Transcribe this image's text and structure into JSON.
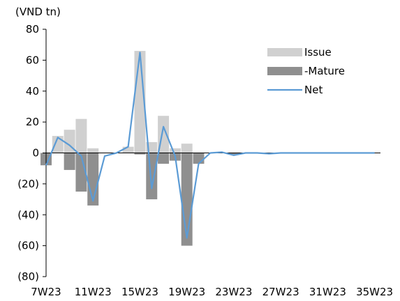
{
  "chart_data": {
    "type": "bar",
    "unit_label": "(VND tn)",
    "x_ticks": [
      "7W23",
      "11W23",
      "15W23",
      "19W23",
      "23W23",
      "27W23",
      "31W23",
      "35W23"
    ],
    "y_ticks": [
      "80",
      "60",
      "40",
      "20",
      "0",
      "(20)",
      "(40)",
      "(60)",
      "(80)"
    ],
    "ylim": [
      -80,
      80
    ],
    "weeks": 29,
    "first_week": 7,
    "legend": {
      "placement": "top-right",
      "labels": [
        "Issue",
        "-Mature",
        "Net"
      ]
    },
    "colors": {
      "issue": "#d0d0d0",
      "mature": "#8f8f8f",
      "net": "#5b9bd5",
      "axis": "#000000"
    },
    "series": [
      {
        "name": "Issue",
        "kind": "bar",
        "values": [
          0,
          11,
          15,
          22,
          3,
          0,
          0,
          4,
          66,
          7,
          24,
          3,
          6,
          0,
          0,
          0,
          0,
          0,
          0,
          0,
          0,
          0,
          0,
          0,
          0,
          0,
          0,
          0,
          0
        ]
      },
      {
        "name": "-Mature",
        "kind": "bar",
        "values": [
          -8,
          0,
          -11,
          -25,
          -34,
          0,
          0,
          0,
          -1,
          -30,
          -7,
          -5,
          -60,
          -7,
          0,
          0,
          -1,
          0,
          0,
          0,
          0,
          0,
          0,
          0,
          0,
          0,
          0,
          0,
          0
        ]
      },
      {
        "name": "Net",
        "kind": "line",
        "values": [
          -8,
          10,
          5,
          -2,
          -31,
          -2,
          0,
          4,
          65,
          -23,
          17,
          -2,
          -55,
          -7,
          0,
          0.5,
          -1.5,
          0,
          0,
          -0.5,
          0,
          0,
          0,
          0,
          0,
          0,
          0,
          0,
          0
        ]
      }
    ]
  }
}
